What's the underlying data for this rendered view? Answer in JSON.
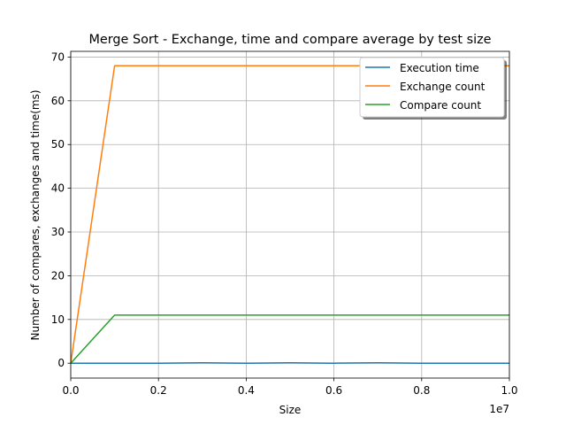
{
  "chart_data": {
    "type": "line",
    "title": "Merge Sort - Exchange, time and compare average by test size",
    "xlabel": "Size",
    "ylabel": "Number of compares, exchanges and time(ms)",
    "x_offset_label": "1e7",
    "xlim": [
      0,
      10000000
    ],
    "ylim": [
      -3.4,
      71.3
    ],
    "xticks": [
      0,
      2000000,
      4000000,
      6000000,
      8000000,
      10000000
    ],
    "xtick_labels": [
      "0.0",
      "0.2",
      "0.4",
      "0.6",
      "0.8",
      "1.0"
    ],
    "yticks": [
      0,
      10,
      20,
      30,
      40,
      50,
      60,
      70
    ],
    "ytick_labels": [
      "0",
      "10",
      "20",
      "30",
      "40",
      "50",
      "60",
      "70"
    ],
    "grid": true,
    "legend_position": "upper right",
    "series": [
      {
        "name": "Execution time",
        "color": "#1f77b4",
        "x": [
          0,
          1000000,
          2000000,
          3000000,
          4000000,
          5000000,
          6000000,
          7000000,
          8000000,
          9000000,
          10000000
        ],
        "y": [
          0,
          0,
          0,
          0.1,
          0,
          0.1,
          0,
          0.1,
          0,
          0,
          0
        ]
      },
      {
        "name": "Exchange count",
        "color": "#ff7f0e",
        "x": [
          0,
          1000000,
          2000000,
          3000000,
          4000000,
          5000000,
          6000000,
          7000000,
          8000000,
          9000000,
          10000000
        ],
        "y": [
          0,
          68,
          68,
          68,
          68,
          68,
          68,
          68,
          68,
          68,
          68
        ]
      },
      {
        "name": "Compare count",
        "color": "#2ca02c",
        "x": [
          0,
          1000000,
          2000000,
          3000000,
          4000000,
          5000000,
          6000000,
          7000000,
          8000000,
          9000000,
          10000000
        ],
        "y": [
          0,
          11,
          11,
          11,
          11,
          11,
          11,
          11,
          11,
          11,
          11
        ]
      }
    ]
  }
}
